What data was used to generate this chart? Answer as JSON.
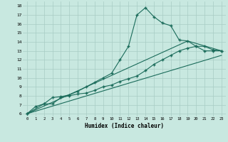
{
  "background_color": "#c8e8e0",
  "grid_color": "#a8ccc4",
  "line_color": "#1a6b5a",
  "marker_style": "+",
  "xlabel": "Humidex (Indice chaleur)",
  "xlim_min": -0.5,
  "xlim_max": 23.5,
  "ylim_min": 5.7,
  "ylim_max": 18.5,
  "yticks": [
    6,
    7,
    8,
    9,
    10,
    11,
    12,
    13,
    14,
    15,
    16,
    17,
    18
  ],
  "xticks": [
    0,
    1,
    2,
    3,
    4,
    5,
    6,
    7,
    8,
    9,
    10,
    11,
    12,
    13,
    14,
    15,
    16,
    17,
    18,
    19,
    20,
    21,
    22,
    23
  ],
  "line1_x": [
    0,
    1,
    2,
    3,
    4,
    5,
    6,
    7,
    8,
    9,
    10,
    11,
    12,
    13,
    14,
    15,
    16,
    17,
    18,
    19,
    20,
    21,
    22,
    23
  ],
  "line1_y": [
    6.0,
    6.8,
    7.1,
    7.8,
    7.9,
    8.1,
    8.5,
    9.0,
    9.5,
    10.0,
    10.5,
    12.0,
    13.5,
    17.0,
    17.8,
    16.8,
    16.1,
    15.8,
    14.2,
    14.1,
    13.5,
    13.0,
    13.0,
    13.0
  ],
  "line2_x": [
    0,
    2,
    3,
    4,
    5,
    6,
    7,
    8,
    9,
    10,
    11,
    12,
    13,
    14,
    15,
    16,
    17,
    18,
    19,
    20,
    21,
    22,
    23
  ],
  "line2_y": [
    6.0,
    7.1,
    7.1,
    7.8,
    8.0,
    8.2,
    8.3,
    8.6,
    9.0,
    9.2,
    9.6,
    9.9,
    10.2,
    10.8,
    11.5,
    12.0,
    12.5,
    13.0,
    13.3,
    13.5,
    13.5,
    13.1,
    13.0
  ],
  "line3_x": [
    0,
    19,
    23
  ],
  "line3_y": [
    6.0,
    14.1,
    13.0
  ],
  "line4_x": [
    0,
    23
  ],
  "line4_y": [
    6.0,
    12.5
  ]
}
